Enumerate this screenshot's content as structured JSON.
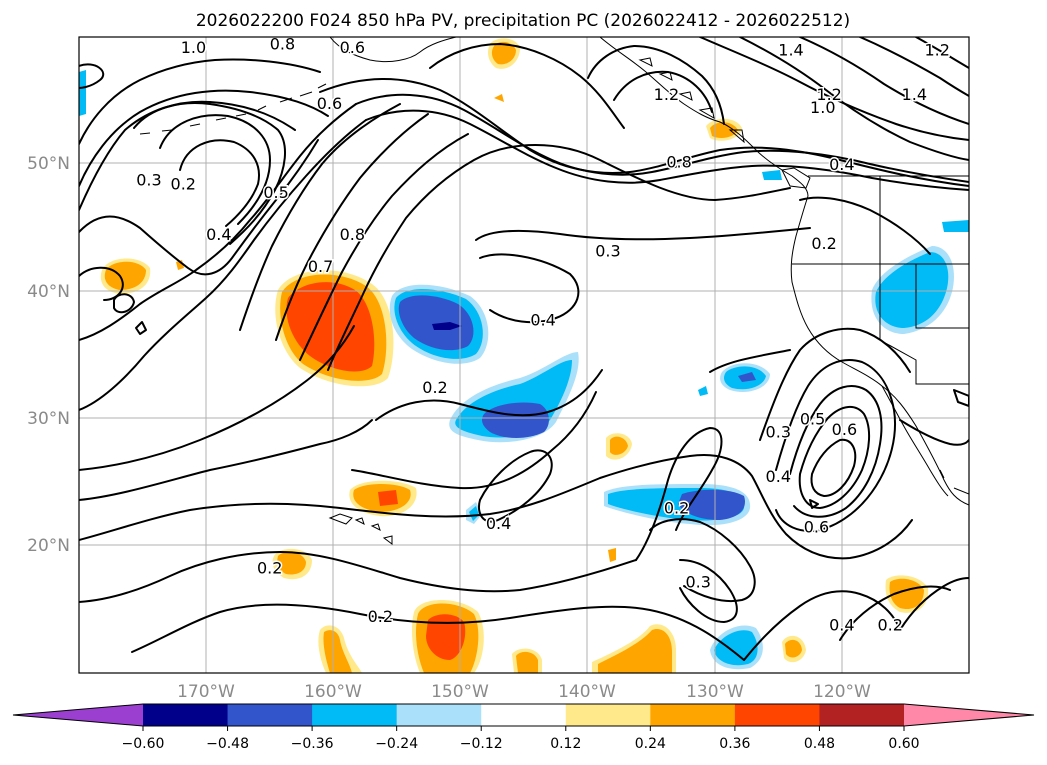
{
  "chart_data": {
    "type": "contour-map",
    "title": "2026022200 F024 850 hPa PV, precipitation PC (2026022412 - 2026022512)",
    "map_extent": {
      "lon": [
        -180,
        -110
      ],
      "lat": [
        10,
        60
      ]
    },
    "lon_ticks": [
      {
        "value": -170,
        "label": "170°W"
      },
      {
        "value": -160,
        "label": "160°W"
      },
      {
        "value": -150,
        "label": "150°W"
      },
      {
        "value": -140,
        "label": "140°W"
      },
      {
        "value": -130,
        "label": "130°W"
      },
      {
        "value": -120,
        "label": "120°W"
      }
    ],
    "lat_ticks": [
      {
        "value": 50,
        "label": "50°N"
      },
      {
        "value": 40,
        "label": "40°N"
      },
      {
        "value": 30,
        "label": "30°N"
      },
      {
        "value": 20,
        "label": "20°N"
      }
    ],
    "colorbar": {
      "levels": [
        -0.72,
        -0.6,
        -0.48,
        -0.36,
        -0.24,
        -0.12,
        0.12,
        0.24,
        0.36,
        0.48,
        0.6,
        0.72
      ],
      "colors": [
        "#9a3fd0",
        "#00008b",
        "#3355cc",
        "#00bbf5",
        "#aae0fa",
        "#ffffff",
        "#ffe98a",
        "#ffa500",
        "#ff4500",
        "#b22222",
        "#ff88a8"
      ],
      "extend_min_color": "#9a3fd0",
      "extend_max_color": "#ff88a8",
      "tick_values": [
        -0.6,
        -0.48,
        -0.36,
        -0.24,
        -0.12,
        0.12,
        0.24,
        0.36,
        0.48,
        0.6
      ],
      "tick_labels": [
        "−0.60",
        "−0.48",
        "−0.36",
        "−0.24",
        "−0.12",
        "0.12",
        "0.24",
        "0.36",
        "0.48",
        "0.60"
      ]
    },
    "contour_labels": [
      {
        "text": "1.0",
        "lon": -171.0,
        "lat": 59.2
      },
      {
        "text": "0.8",
        "lon": -164.0,
        "lat": 59.5
      },
      {
        "text": "0.6",
        "lon": -158.5,
        "lat": 59.2
      },
      {
        "text": "0.6",
        "lon": -160.3,
        "lat": 54.8
      },
      {
        "text": "0.3",
        "lon": -174.5,
        "lat": 48.8
      },
      {
        "text": "0.2",
        "lon": -171.8,
        "lat": 48.5
      },
      {
        "text": "0.5",
        "lon": -164.5,
        "lat": 47.8
      },
      {
        "text": "0.4",
        "lon": -169.0,
        "lat": 44.5
      },
      {
        "text": "0.7",
        "lon": -161.0,
        "lat": 42.0
      },
      {
        "text": "0.8",
        "lon": -158.5,
        "lat": 44.5
      },
      {
        "text": "0.4",
        "lon": -143.5,
        "lat": 37.8
      },
      {
        "text": "0.2",
        "lon": -152.0,
        "lat": 32.5
      },
      {
        "text": "0.3",
        "lon": -138.4,
        "lat": 43.2
      },
      {
        "text": "1.2",
        "lon": -133.8,
        "lat": 55.5
      },
      {
        "text": "0.8",
        "lon": -132.8,
        "lat": 50.2
      },
      {
        "text": "1.4",
        "lon": -124.0,
        "lat": 59.0
      },
      {
        "text": "1.2",
        "lon": -112.5,
        "lat": 59.0
      },
      {
        "text": "1.2",
        "lon": -121.0,
        "lat": 55.5
      },
      {
        "text": "1.0",
        "lon": -121.5,
        "lat": 54.5
      },
      {
        "text": "1.4",
        "lon": -114.3,
        "lat": 55.5
      },
      {
        "text": "0.4",
        "lon": -120.0,
        "lat": 50.0
      },
      {
        "text": "0.2",
        "lon": -121.4,
        "lat": 43.8
      },
      {
        "text": "0.3",
        "lon": -125.0,
        "lat": 29.0
      },
      {
        "text": "0.5",
        "lon": -122.3,
        "lat": 30.0
      },
      {
        "text": "0.6",
        "lon": -119.8,
        "lat": 29.2
      },
      {
        "text": "0.4",
        "lon": -125.0,
        "lat": 25.5
      },
      {
        "text": "0.6",
        "lon": -122.0,
        "lat": 21.5
      },
      {
        "text": "0.2",
        "lon": -133.0,
        "lat": 23.0
      },
      {
        "text": "0.4",
        "lon": -147.0,
        "lat": 21.8
      },
      {
        "text": "0.3",
        "lon": -131.3,
        "lat": 17.2
      },
      {
        "text": "0.2",
        "lon": -165.0,
        "lat": 18.3
      },
      {
        "text": "0.2",
        "lon": -156.3,
        "lat": 14.5
      },
      {
        "text": "0.4",
        "lon": -120.0,
        "lat": 13.8
      },
      {
        "text": "0.2",
        "lon": -116.2,
        "lat": 13.8
      }
    ]
  }
}
